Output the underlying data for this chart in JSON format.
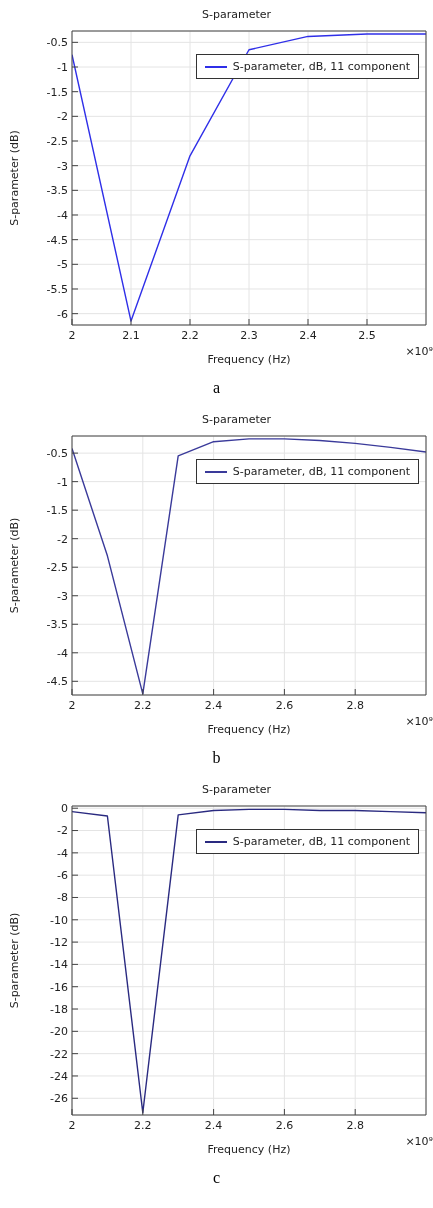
{
  "chart_data": [
    {
      "type": "line",
      "title": "S-parameter",
      "xlabel": "Frequency (Hz)",
      "ylabel": "S-parameter (dB)",
      "x": [
        2.0,
        2.1,
        2.2,
        2.3,
        2.4,
        2.5,
        2.6
      ],
      "series": [
        {
          "name": "S-parameter, dB, 11 component",
          "color": "#2f2fe8",
          "values": [
            -0.75,
            -6.15,
            -2.8,
            -0.65,
            -0.38,
            -0.33,
            -0.33
          ]
        }
      ],
      "xlim": [
        2,
        2.6
      ],
      "xticks": [
        2,
        2.1,
        2.2,
        2.3,
        2.4,
        2.5
      ],
      "ylim": [
        -6.23,
        -0.27
      ],
      "yticks": [
        -6,
        -5.5,
        -5,
        -4.5,
        -4,
        -3.5,
        -3,
        -2.5,
        -2,
        -1.5,
        -1,
        -0.5
      ],
      "grid": true,
      "legend": "top right",
      "marker": "none",
      "line_style": "solid",
      "annotations": [
        "×10⁹",
        "a"
      ]
    },
    {
      "type": "line",
      "title": "S-parameter",
      "xlabel": "Frequency (Hz)",
      "ylabel": "S-parameter (dB)",
      "x": [
        2.0,
        2.1,
        2.2,
        2.3,
        2.4,
        2.5,
        2.6,
        2.7,
        2.8,
        2.9,
        3.0
      ],
      "series": [
        {
          "name": "S-parameter, dB, 11 component",
          "color": "#3a3a9a",
          "values": [
            -0.42,
            -2.3,
            -4.72,
            -0.55,
            -0.3,
            -0.25,
            -0.25,
            -0.28,
            -0.33,
            -0.4,
            -0.48
          ]
        }
      ],
      "xlim": [
        2,
        3
      ],
      "xticks": [
        2,
        2.2,
        2.4,
        2.6,
        2.8
      ],
      "ylim": [
        -4.74,
        -0.2
      ],
      "yticks": [
        -4.5,
        -4,
        -3.5,
        -3,
        -2.5,
        -2,
        -1.5,
        -1,
        -0.5
      ],
      "grid": true,
      "legend": "top right",
      "marker": "none",
      "line_style": "solid",
      "annotations": [
        "×10⁹",
        "b"
      ]
    },
    {
      "type": "line",
      "title": "S-parameter",
      "xlabel": "Frequency (Hz)",
      "ylabel": "S-parameter (dB)",
      "x": [
        2.0,
        2.1,
        2.2,
        2.3,
        2.4,
        2.5,
        2.6,
        2.7,
        2.8,
        2.9,
        3.0
      ],
      "series": [
        {
          "name": "S-parameter, dB, 11 component",
          "color": "#2a2a80",
          "values": [
            -0.3,
            -0.7,
            -27.3,
            -0.6,
            -0.2,
            -0.1,
            -0.1,
            -0.2,
            -0.2,
            -0.3,
            -0.4
          ]
        }
      ],
      "xlim": [
        2,
        3
      ],
      "xticks": [
        2,
        2.2,
        2.4,
        2.6,
        2.8
      ],
      "ylim": [
        -27.5,
        0.2
      ],
      "yticks": [
        -26,
        -24,
        -22,
        -20,
        -18,
        -16,
        -14,
        -12,
        -10,
        -8,
        -6,
        -4,
        -2,
        0
      ],
      "grid": true,
      "legend": "top right",
      "marker": "none",
      "line_style": "solid",
      "annotations": [
        "×10⁹",
        "c"
      ]
    }
  ]
}
